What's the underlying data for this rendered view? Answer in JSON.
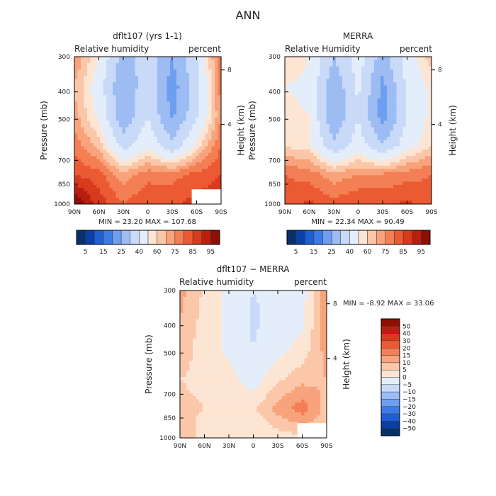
{
  "main_title": "ANN",
  "colors": {
    "diverging_blue_to_red": [
      "#08306b",
      "#0b3fa8",
      "#1f5fd6",
      "#3b7be6",
      "#6d9ef0",
      "#9dbcf4",
      "#c8daf7",
      "#e4eefa",
      "#fde5d3",
      "#fbc7a8",
      "#f8a37c",
      "#f47f55",
      "#ec5a33",
      "#d83a1d",
      "#b81f10",
      "#8e0f05"
    ]
  },
  "panels": [
    {
      "id": "model",
      "title": "dflt107 (yrs 1-1)",
      "left_label": "Relative humidity",
      "right_label": "percent",
      "ylabel": "Pressure (mb)",
      "y2label": "Height (km)",
      "pressure_ticks": [
        "300",
        "400",
        "500",
        "700",
        "850",
        "1000"
      ],
      "height_ticks": [
        "8",
        "4"
      ],
      "lat_ticks": [
        "90N",
        "60N",
        "30N",
        "0",
        "30S",
        "60S",
        "90S"
      ],
      "stats": "MIN =   23.20   MAX =  107.68"
    },
    {
      "id": "obs",
      "title": "MERRA",
      "left_label": "Relative Humidity",
      "right_label": "percent",
      "ylabel": "Pressure (mb)",
      "y2label": "Height (km)",
      "pressure_ticks": [
        "300",
        "400",
        "500",
        "700",
        "850",
        "1000"
      ],
      "height_ticks": [
        "8",
        "4"
      ],
      "lat_ticks": [
        "90N",
        "60N",
        "30N",
        "0",
        "30S",
        "60S",
        "90S"
      ],
      "stats": "MIN =   22.34   MAX =   90.49"
    },
    {
      "id": "diff",
      "title": "dflt107 − MERRA",
      "left_label": "Relative humidity",
      "right_label": "percent",
      "ylabel": "Pressure (mb)",
      "y2label": "Height (km)",
      "pressure_ticks": [
        "300",
        "400",
        "500",
        "700",
        "850",
        "1000"
      ],
      "height_ticks": [
        "8",
        "4"
      ],
      "lat_ticks": [
        "90N",
        "60N",
        "30N",
        "0",
        "30S",
        "60S",
        "90S"
      ],
      "stats": "MIN =   -8.92   MAX =  33.06"
    }
  ],
  "colorbar_abs_labels": [
    "5",
    "15",
    "25",
    "40",
    "60",
    "75",
    "85",
    "95"
  ],
  "colorbar_diff_labels": [
    "50",
    "40",
    "30",
    "20",
    "15",
    "10",
    "5",
    "0",
    "−5",
    "−10",
    "−15",
    "−20",
    "−30",
    "−40",
    "−50"
  ],
  "chart_data": [
    {
      "type": "heatmap",
      "title": "dflt107 (yrs 1-1)",
      "xlabel": "",
      "ylabel": "Pressure (mb)",
      "x": [
        "90N",
        "60N",
        "30N",
        "0",
        "30S",
        "60S",
        "90S"
      ],
      "y": [
        300,
        400,
        500,
        700,
        850,
        1000
      ],
      "units": "percent",
      "values": [
        [
          75,
          60,
          35,
          45,
          30,
          50,
          80
        ],
        [
          70,
          55,
          30,
          48,
          25,
          45,
          78
        ],
        [
          72,
          58,
          32,
          50,
          28,
          48,
          75
        ],
        [
          78,
          68,
          45,
          58,
          42,
          62,
          80
        ],
        [
          85,
          82,
          72,
          78,
          78,
          82,
          85
        ],
        [
          100,
          88,
          80,
          85,
          84,
          87,
          88
        ]
      ],
      "min": 23.2,
      "max": 107.68
    },
    {
      "type": "heatmap",
      "title": "MERRA",
      "xlabel": "",
      "ylabel": "Pressure (mb)",
      "x": [
        "90N",
        "60N",
        "30N",
        "0",
        "30S",
        "60S",
        "90S"
      ],
      "y": [
        300,
        400,
        500,
        700,
        850,
        1000
      ],
      "units": "percent",
      "values": [
        [
          65,
          60,
          40,
          55,
          35,
          55,
          68
        ],
        [
          60,
          58,
          32,
          52,
          27,
          52,
          62
        ],
        [
          62,
          60,
          30,
          50,
          25,
          50,
          62
        ],
        [
          64,
          62,
          42,
          55,
          40,
          56,
          65
        ],
        [
          80,
          78,
          72,
          75,
          76,
          78,
          80
        ],
        [
          82,
          86,
          82,
          85,
          84,
          86,
          82
        ]
      ],
      "min": 22.34,
      "max": 90.49
    },
    {
      "type": "heatmap",
      "title": "dflt107 − MERRA",
      "xlabel": "",
      "ylabel": "Pressure (mb)",
      "x": [
        "90N",
        "60N",
        "30N",
        "0",
        "30S",
        "60S",
        "90S"
      ],
      "y": [
        300,
        400,
        500,
        700,
        850,
        1000
      ],
      "units": "percent",
      "values": [
        [
          12,
          4,
          -2,
          -5,
          -4,
          -3,
          15
        ],
        [
          10,
          3,
          -1,
          -6,
          -2,
          -2,
          14
        ],
        [
          8,
          2,
          -1,
          -5,
          -2,
          2,
          12
        ],
        [
          5,
          4,
          2,
          -3,
          4,
          8,
          10
        ],
        [
          6,
          5,
          3,
          4,
          12,
          18,
          8
        ],
        [
          10,
          2,
          0,
          0,
          2,
          4,
          6
        ]
      ],
      "min": -8.92,
      "max": 33.06
    }
  ]
}
